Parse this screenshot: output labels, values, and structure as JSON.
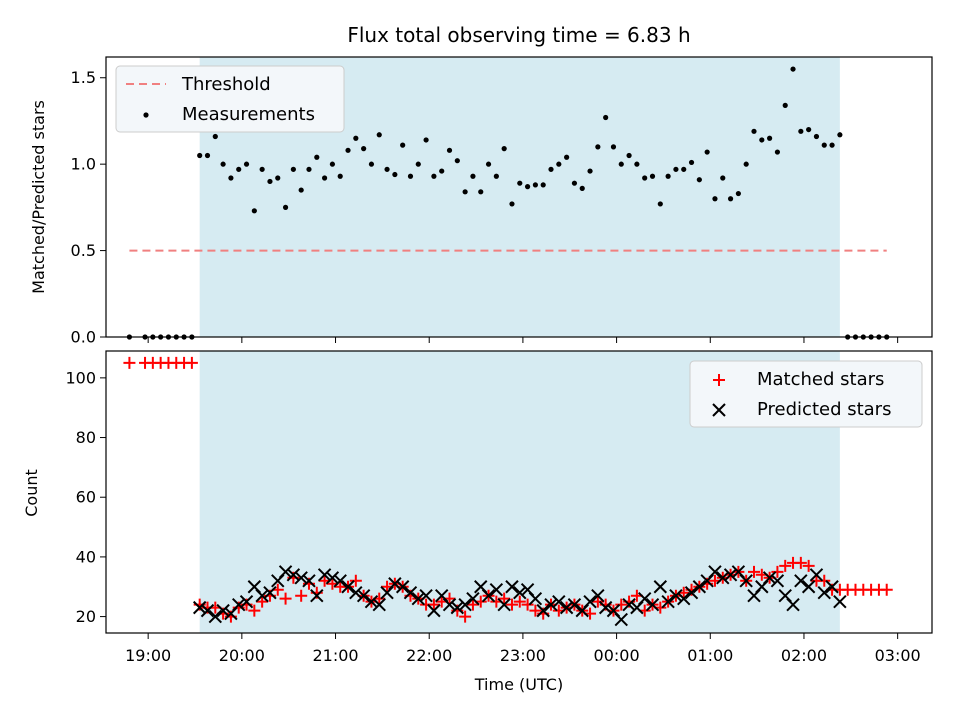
{
  "figure": {
    "title": "Flux total observing time = 6.83 h"
  },
  "colors": {
    "shade": "#add8e6",
    "threshold": "#f08080",
    "measurement": "#000000",
    "matched": "#ff0000",
    "predicted": "#000000",
    "legend_bg": "#f3f7fa"
  },
  "chart_data": [
    {
      "type": "scatter",
      "panel": "top",
      "title": "Flux total observing time = 6.83 h",
      "xlabel": "",
      "ylabel": "Matched/Predicted stars",
      "xlim": [
        "18:33",
        "03:22"
      ],
      "ylim": [
        0,
        1.62
      ],
      "yticks": [
        0.0,
        0.5,
        1.0,
        1.5
      ],
      "ytick_labels": [
        "0.0",
        "0.5",
        "1.0",
        "1.5"
      ],
      "grid": false,
      "legend_position": "top-left",
      "observing_window": [
        "19:33",
        "02:23"
      ],
      "threshold": {
        "name": "Threshold",
        "value": 0.5,
        "x_range": [
          "18:48",
          "02:53"
        ]
      },
      "series": [
        {
          "name": "Measurements",
          "x": [
            "18:48",
            "18:58",
            "19:03",
            "19:08",
            "19:13",
            "19:18",
            "19:23",
            "19:28",
            "19:33",
            "19:38",
            "19:43",
            "19:48",
            "19:53",
            "19:58",
            "20:03",
            "20:08",
            "20:13",
            "20:18",
            "20:23",
            "20:28",
            "20:33",
            "20:38",
            "20:43",
            "20:48",
            "20:53",
            "20:58",
            "21:03",
            "21:08",
            "21:13",
            "21:18",
            "21:23",
            "21:28",
            "21:33",
            "21:38",
            "21:43",
            "21:48",
            "21:53",
            "21:58",
            "22:03",
            "22:08",
            "22:13",
            "22:18",
            "22:23",
            "22:28",
            "22:33",
            "22:38",
            "22:43",
            "22:48",
            "22:53",
            "22:58",
            "23:03",
            "23:08",
            "23:13",
            "23:18",
            "23:23",
            "23:28",
            "23:33",
            "23:38",
            "23:43",
            "23:48",
            "23:53",
            "23:58",
            "00:03",
            "00:08",
            "00:13",
            "00:18",
            "00:23",
            "00:28",
            "00:33",
            "00:38",
            "00:43",
            "00:48",
            "00:53",
            "00:58",
            "01:03",
            "01:08",
            "01:13",
            "01:18",
            "01:23",
            "01:28",
            "01:33",
            "01:38",
            "01:43",
            "01:48",
            "01:53",
            "01:58",
            "02:03",
            "02:08",
            "02:13",
            "02:18",
            "02:23",
            "02:28",
            "02:33",
            "02:38",
            "02:43",
            "02:48",
            "02:53"
          ],
          "y": [
            0.0,
            0.0,
            0.0,
            0.0,
            0.0,
            0.0,
            0.0,
            0.0,
            1.05,
            1.05,
            1.16,
            1.0,
            0.92,
            0.97,
            1.0,
            0.73,
            0.97,
            0.9,
            0.92,
            0.75,
            0.97,
            0.85,
            0.97,
            1.04,
            0.92,
            1.0,
            0.93,
            1.08,
            1.15,
            1.09,
            1.0,
            1.17,
            0.97,
            0.94,
            1.11,
            0.93,
            1.0,
            1.14,
            0.93,
            0.96,
            1.08,
            1.02,
            0.84,
            0.93,
            0.84,
            1.0,
            0.93,
            1.09,
            0.77,
            0.89,
            0.87,
            0.88,
            0.88,
            0.97,
            1.0,
            1.04,
            0.89,
            0.86,
            0.96,
            1.1,
            1.27,
            1.1,
            1.0,
            1.05,
            1.0,
            0.92,
            0.93,
            0.77,
            0.93,
            0.97,
            0.97,
            1.01,
            0.91,
            1.07,
            0.8,
            0.92,
            0.8,
            0.83,
            1.0,
            1.19,
            1.14,
            1.15,
            1.07,
            1.34,
            1.55,
            1.19,
            1.2,
            1.16,
            1.11,
            1.11,
            1.17,
            0.0,
            0.0,
            0.0,
            0.0,
            0.0,
            0.0
          ]
        }
      ]
    },
    {
      "type": "scatter",
      "panel": "bottom",
      "xlabel": "Time (UTC)",
      "ylabel": "Count",
      "xlim": [
        "18:33",
        "03:22"
      ],
      "ylim": [
        14.5,
        109
      ],
      "xticks": [
        "19:00",
        "20:00",
        "21:00",
        "22:00",
        "23:00",
        "00:00",
        "01:00",
        "02:00",
        "03:00"
      ],
      "yticks": [
        20,
        40,
        60,
        80,
        100
      ],
      "ytick_labels": [
        "20",
        "40",
        "60",
        "80",
        "100"
      ],
      "grid": false,
      "legend_position": "top-right",
      "observing_window": [
        "19:33",
        "02:23"
      ],
      "series": [
        {
          "name": "Matched stars",
          "marker": "plus",
          "x": [
            "18:48",
            "18:58",
            "19:03",
            "19:08",
            "19:13",
            "19:18",
            "19:23",
            "19:28",
            "19:33",
            "19:38",
            "19:43",
            "19:48",
            "19:53",
            "19:58",
            "20:03",
            "20:08",
            "20:13",
            "20:18",
            "20:23",
            "20:28",
            "20:33",
            "20:38",
            "20:43",
            "20:48",
            "20:53",
            "20:58",
            "21:03",
            "21:08",
            "21:13",
            "21:18",
            "21:23",
            "21:28",
            "21:33",
            "21:38",
            "21:43",
            "21:48",
            "21:53",
            "21:58",
            "22:03",
            "22:08",
            "22:13",
            "22:18",
            "22:23",
            "22:28",
            "22:33",
            "22:38",
            "22:43",
            "22:48",
            "22:53",
            "22:58",
            "23:03",
            "23:08",
            "23:13",
            "23:18",
            "23:23",
            "23:28",
            "23:33",
            "23:38",
            "23:43",
            "23:48",
            "23:53",
            "23:58",
            "00:03",
            "00:08",
            "00:13",
            "00:18",
            "00:23",
            "00:28",
            "00:33",
            "00:38",
            "00:43",
            "00:48",
            "00:53",
            "00:58",
            "01:03",
            "01:08",
            "01:13",
            "01:18",
            "01:23",
            "01:28",
            "01:33",
            "01:38",
            "01:43",
            "01:48",
            "01:53",
            "01:58",
            "02:03",
            "02:08",
            "02:13",
            "02:18",
            "02:23",
            "02:28",
            "02:33",
            "02:38",
            "02:43",
            "02:48",
            "02:53"
          ],
          "y": [
            105,
            105,
            105,
            105,
            105,
            105,
            105,
            105,
            24,
            23,
            23,
            21,
            20,
            23,
            24,
            22,
            25,
            27,
            29,
            26,
            33,
            27,
            31,
            28,
            32,
            31,
            30,
            30,
            32,
            27,
            25,
            26,
            30,
            31,
            30,
            27,
            26,
            24,
            24,
            25,
            26,
            22,
            20,
            24,
            25,
            27,
            25,
            26,
            24,
            25,
            24,
            22,
            21,
            24,
            22,
            23,
            24,
            22,
            21,
            25,
            24,
            22,
            24,
            25,
            27,
            22,
            24,
            23,
            25,
            27,
            28,
            29,
            30,
            31,
            32,
            33,
            34,
            35,
            32,
            35,
            34,
            33,
            35,
            37,
            38,
            38,
            37,
            32,
            32,
            29,
            29,
            29,
            29,
            29,
            29,
            29,
            29
          ]
        },
        {
          "name": "Predicted stars",
          "marker": "x",
          "x": [
            "19:33",
            "19:38",
            "19:43",
            "19:48",
            "19:53",
            "19:58",
            "20:03",
            "20:08",
            "20:13",
            "20:18",
            "20:23",
            "20:28",
            "20:33",
            "20:38",
            "20:43",
            "20:48",
            "20:53",
            "20:58",
            "21:03",
            "21:08",
            "21:13",
            "21:18",
            "21:23",
            "21:28",
            "21:33",
            "21:38",
            "21:43",
            "21:48",
            "21:53",
            "21:58",
            "22:03",
            "22:08",
            "22:13",
            "22:18",
            "22:23",
            "22:28",
            "22:33",
            "22:38",
            "22:43",
            "22:48",
            "22:53",
            "22:58",
            "23:03",
            "23:08",
            "23:13",
            "23:18",
            "23:23",
            "23:28",
            "23:33",
            "23:38",
            "23:43",
            "23:48",
            "23:53",
            "23:58",
            "00:03",
            "00:08",
            "00:13",
            "00:18",
            "00:23",
            "00:28",
            "00:33",
            "00:38",
            "00:43",
            "00:48",
            "00:53",
            "00:58",
            "01:03",
            "01:08",
            "01:13",
            "01:18",
            "01:23",
            "01:28",
            "01:33",
            "01:38",
            "01:43",
            "01:48",
            "01:53",
            "01:58",
            "02:03",
            "02:08",
            "02:13",
            "02:18",
            "02:23"
          ],
          "y": [
            23,
            22,
            20,
            22,
            21,
            24,
            25,
            30,
            27,
            28,
            32,
            35,
            34,
            33,
            32,
            27,
            34,
            33,
            32,
            30,
            28,
            27,
            25,
            24,
            28,
            31,
            30,
            28,
            26,
            27,
            22,
            27,
            24,
            23,
            24,
            26,
            30,
            27,
            29,
            24,
            30,
            28,
            29,
            26,
            22,
            24,
            25,
            23,
            24,
            22,
            25,
            27,
            23,
            22,
            19,
            24,
            23,
            26,
            24,
            30,
            25,
            27,
            26,
            28,
            30,
            32,
            35,
            33,
            34,
            35,
            32,
            27,
            30,
            33,
            32,
            27,
            24,
            32,
            30,
            34,
            28,
            30,
            25
          ]
        }
      ]
    }
  ]
}
